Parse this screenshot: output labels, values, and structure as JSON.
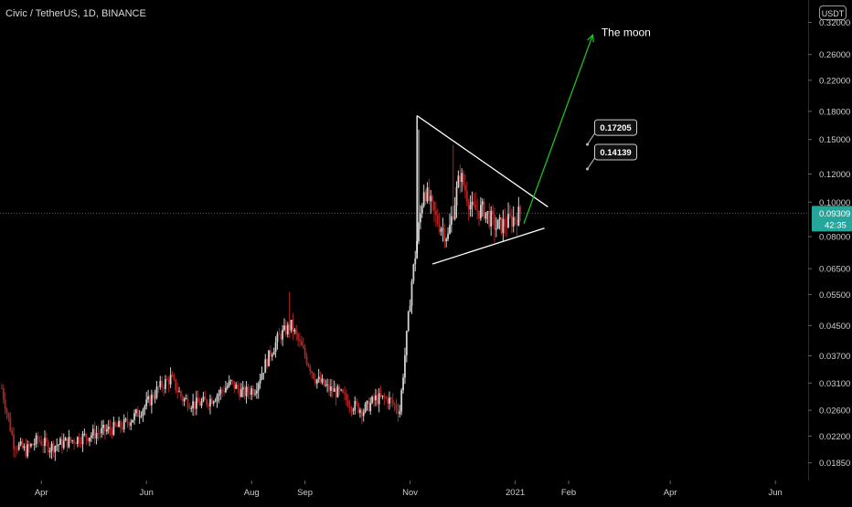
{
  "header": {
    "title": "Civic / TetherUS, 1D, BINANCE",
    "currency": "USDT"
  },
  "colors": {
    "background": "#000000",
    "up": "#d0d0d0",
    "down": "#b22222",
    "price_badge": "#26a69a",
    "axis_text": "#cccccc",
    "grid_dots": "#555555",
    "arrow": "#1fc01f",
    "triangle": "#ffffff"
  },
  "chart_data": {
    "type": "candlestick",
    "title": "Civic / TetherUS, 1D, BINANCE",
    "y_scale": "log",
    "ylim": [
      0.0165,
      0.37
    ],
    "y_ticks": [
      "0.32000",
      "0.26000",
      "0.22000",
      "0.18000",
      "0.15000",
      "0.12000",
      "0.10000",
      "0.08000",
      "0.06500",
      "0.05500",
      "0.04500",
      "0.03700",
      "0.03100",
      "0.02600",
      "0.02200",
      "0.01850"
    ],
    "x_ticks": [
      "Apr",
      "Jun",
      "Aug",
      "Sep",
      "Nov",
      "2021",
      "Feb",
      "Apr",
      "Jun"
    ],
    "x_tick_dates": [
      "2020-04-01",
      "2020-06-01",
      "2020-08-01",
      "2020-09-01",
      "2020-11-01",
      "2021-01-01",
      "2021-02-01",
      "2021-04-01",
      "2021-06-01"
    ],
    "x_range": [
      "2020-03-08",
      "2021-06-20"
    ],
    "current_price": "0.09309",
    "countdown": "42:35",
    "candles_weekly_close": [
      [
        "2020-03-09",
        0.03
      ],
      [
        "2020-03-16",
        0.021
      ],
      [
        "2020-03-23",
        0.02
      ],
      [
        "2020-03-30",
        0.0215
      ],
      [
        "2020-04-06",
        0.0205
      ],
      [
        "2020-04-13",
        0.021
      ],
      [
        "2020-04-20",
        0.0215
      ],
      [
        "2020-04-27",
        0.022
      ],
      [
        "2020-05-04",
        0.0225
      ],
      [
        "2020-05-11",
        0.023
      ],
      [
        "2020-05-18",
        0.0235
      ],
      [
        "2020-05-25",
        0.025
      ],
      [
        "2020-06-01",
        0.027
      ],
      [
        "2020-06-08",
        0.03
      ],
      [
        "2020-06-15",
        0.032
      ],
      [
        "2020-06-22",
        0.028
      ],
      [
        "2020-06-29",
        0.027
      ],
      [
        "2020-07-06",
        0.0275
      ],
      [
        "2020-07-13",
        0.029
      ],
      [
        "2020-07-20",
        0.031
      ],
      [
        "2020-07-27",
        0.029
      ],
      [
        "2020-08-03",
        0.03
      ],
      [
        "2020-08-10",
        0.036
      ],
      [
        "2020-08-17",
        0.042
      ],
      [
        "2020-08-24",
        0.045
      ],
      [
        "2020-08-31",
        0.038
      ],
      [
        "2020-09-07",
        0.032
      ],
      [
        "2020-09-14",
        0.03
      ],
      [
        "2020-09-21",
        0.029
      ],
      [
        "2020-09-28",
        0.027
      ],
      [
        "2020-10-05",
        0.026
      ],
      [
        "2020-10-12",
        0.028
      ],
      [
        "2020-10-19",
        0.028
      ],
      [
        "2020-10-26",
        0.026
      ],
      [
        "2020-11-02",
        0.06
      ],
      [
        "2020-11-09",
        0.11
      ],
      [
        "2020-11-16",
        0.09
      ],
      [
        "2020-11-23",
        0.08
      ],
      [
        "2020-11-30",
        0.12
      ],
      [
        "2020-12-07",
        0.095
      ],
      [
        "2020-12-14",
        0.095
      ],
      [
        "2020-12-21",
        0.085
      ],
      [
        "2020-12-28",
        0.088
      ],
      [
        "2021-01-04",
        0.0931
      ]
    ],
    "pattern": {
      "kind": "symmetrical-triangle",
      "upper_line": [
        [
          "2020-11-05",
          0.175
        ],
        [
          "2021-01-20",
          0.097
        ]
      ],
      "lower_line": [
        [
          "2020-11-14",
          0.067
        ],
        [
          "2021-01-18",
          0.0845
        ]
      ],
      "vertical_line": [
        [
          "2020-11-05",
          0.072
        ],
        [
          "2020-11-05",
          0.175
        ]
      ],
      "arrow": [
        [
          "2021-01-06",
          0.087
        ],
        [
          "2021-02-15",
          0.295
        ]
      ]
    },
    "annotations": [
      {
        "text": "The moon",
        "x": "2021-02-20",
        "y": 0.3
      },
      {
        "text": "0.17205",
        "x": "2021-02-14",
        "y": 0.156
      },
      {
        "text": "0.14139",
        "x": "2021-02-14",
        "y": 0.133
      }
    ]
  }
}
